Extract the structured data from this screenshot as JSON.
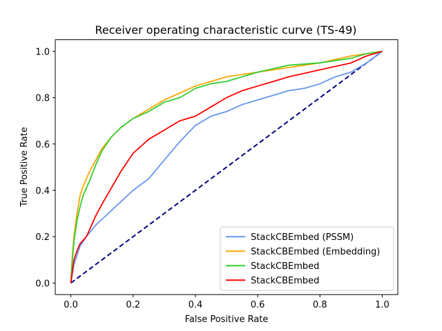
{
  "chart_data": {
    "type": "line",
    "title": "Receiver operating characteristic curve (TS-49)",
    "xlabel": "False Positive Rate",
    "ylabel": "True Positive Rate",
    "xlim": [
      -0.05,
      1.05
    ],
    "ylim": [
      -0.05,
      1.05
    ],
    "xticks": [
      "0.0",
      "0.2",
      "0.4",
      "0.6",
      "0.8",
      "1.0"
    ],
    "yticks": [
      "0.0",
      "0.2",
      "0.4",
      "0.6",
      "0.8",
      "1.0"
    ],
    "grid": false,
    "legend_position": "lower-right",
    "reference_line": {
      "color": "#000080",
      "style": "dashed",
      "x": [
        0,
        1
      ],
      "y": [
        0,
        1
      ]
    },
    "series": [
      {
        "name": "StackCBEmbed (PSSM)",
        "color": "#6495ed",
        "x": [
          0,
          0.01,
          0.02,
          0.03,
          0.05,
          0.08,
          0.12,
          0.16,
          0.2,
          0.25,
          0.3,
          0.35,
          0.4,
          0.45,
          0.5,
          0.55,
          0.6,
          0.65,
          0.7,
          0.75,
          0.8,
          0.85,
          0.9,
          0.95,
          1.0
        ],
        "y": [
          0,
          0.08,
          0.12,
          0.16,
          0.2,
          0.25,
          0.3,
          0.35,
          0.4,
          0.45,
          0.53,
          0.61,
          0.68,
          0.72,
          0.74,
          0.77,
          0.79,
          0.81,
          0.83,
          0.84,
          0.86,
          0.89,
          0.91,
          0.95,
          1.0
        ]
      },
      {
        "name": "StackCBEmbed (Embedding)",
        "color": "#ffa500",
        "x": [
          0,
          0.005,
          0.01,
          0.02,
          0.03,
          0.04,
          0.06,
          0.08,
          0.1,
          0.13,
          0.16,
          0.2,
          0.25,
          0.3,
          0.35,
          0.4,
          0.45,
          0.5,
          0.55,
          0.6,
          0.7,
          0.8,
          0.9,
          0.95,
          1.0
        ],
        "y": [
          0,
          0.12,
          0.2,
          0.3,
          0.38,
          0.42,
          0.48,
          0.53,
          0.58,
          0.63,
          0.67,
          0.71,
          0.75,
          0.79,
          0.82,
          0.85,
          0.87,
          0.89,
          0.9,
          0.91,
          0.93,
          0.95,
          0.98,
          0.99,
          1.0
        ]
      },
      {
        "name": "StackCBEmbed",
        "color": "#32cd32",
        "x": [
          0,
          0.005,
          0.01,
          0.02,
          0.03,
          0.04,
          0.06,
          0.08,
          0.1,
          0.13,
          0.16,
          0.2,
          0.25,
          0.3,
          0.35,
          0.4,
          0.45,
          0.5,
          0.55,
          0.6,
          0.7,
          0.8,
          0.9,
          0.95,
          1.0
        ],
        "y": [
          0,
          0.1,
          0.18,
          0.27,
          0.33,
          0.38,
          0.44,
          0.51,
          0.57,
          0.63,
          0.67,
          0.71,
          0.74,
          0.78,
          0.8,
          0.84,
          0.86,
          0.87,
          0.89,
          0.91,
          0.94,
          0.95,
          0.97,
          0.99,
          1.0
        ]
      },
      {
        "name": "StackCBEmbed",
        "color": "#ff0000",
        "x": [
          0,
          0.005,
          0.01,
          0.02,
          0.03,
          0.05,
          0.08,
          0.1,
          0.13,
          0.16,
          0.2,
          0.25,
          0.3,
          0.35,
          0.4,
          0.45,
          0.5,
          0.55,
          0.6,
          0.65,
          0.7,
          0.8,
          0.9,
          0.95,
          1.0
        ],
        "y": [
          0,
          0.05,
          0.1,
          0.14,
          0.17,
          0.2,
          0.29,
          0.34,
          0.41,
          0.48,
          0.56,
          0.62,
          0.66,
          0.7,
          0.72,
          0.76,
          0.8,
          0.83,
          0.85,
          0.87,
          0.89,
          0.92,
          0.95,
          0.98,
          1.0
        ]
      }
    ]
  }
}
